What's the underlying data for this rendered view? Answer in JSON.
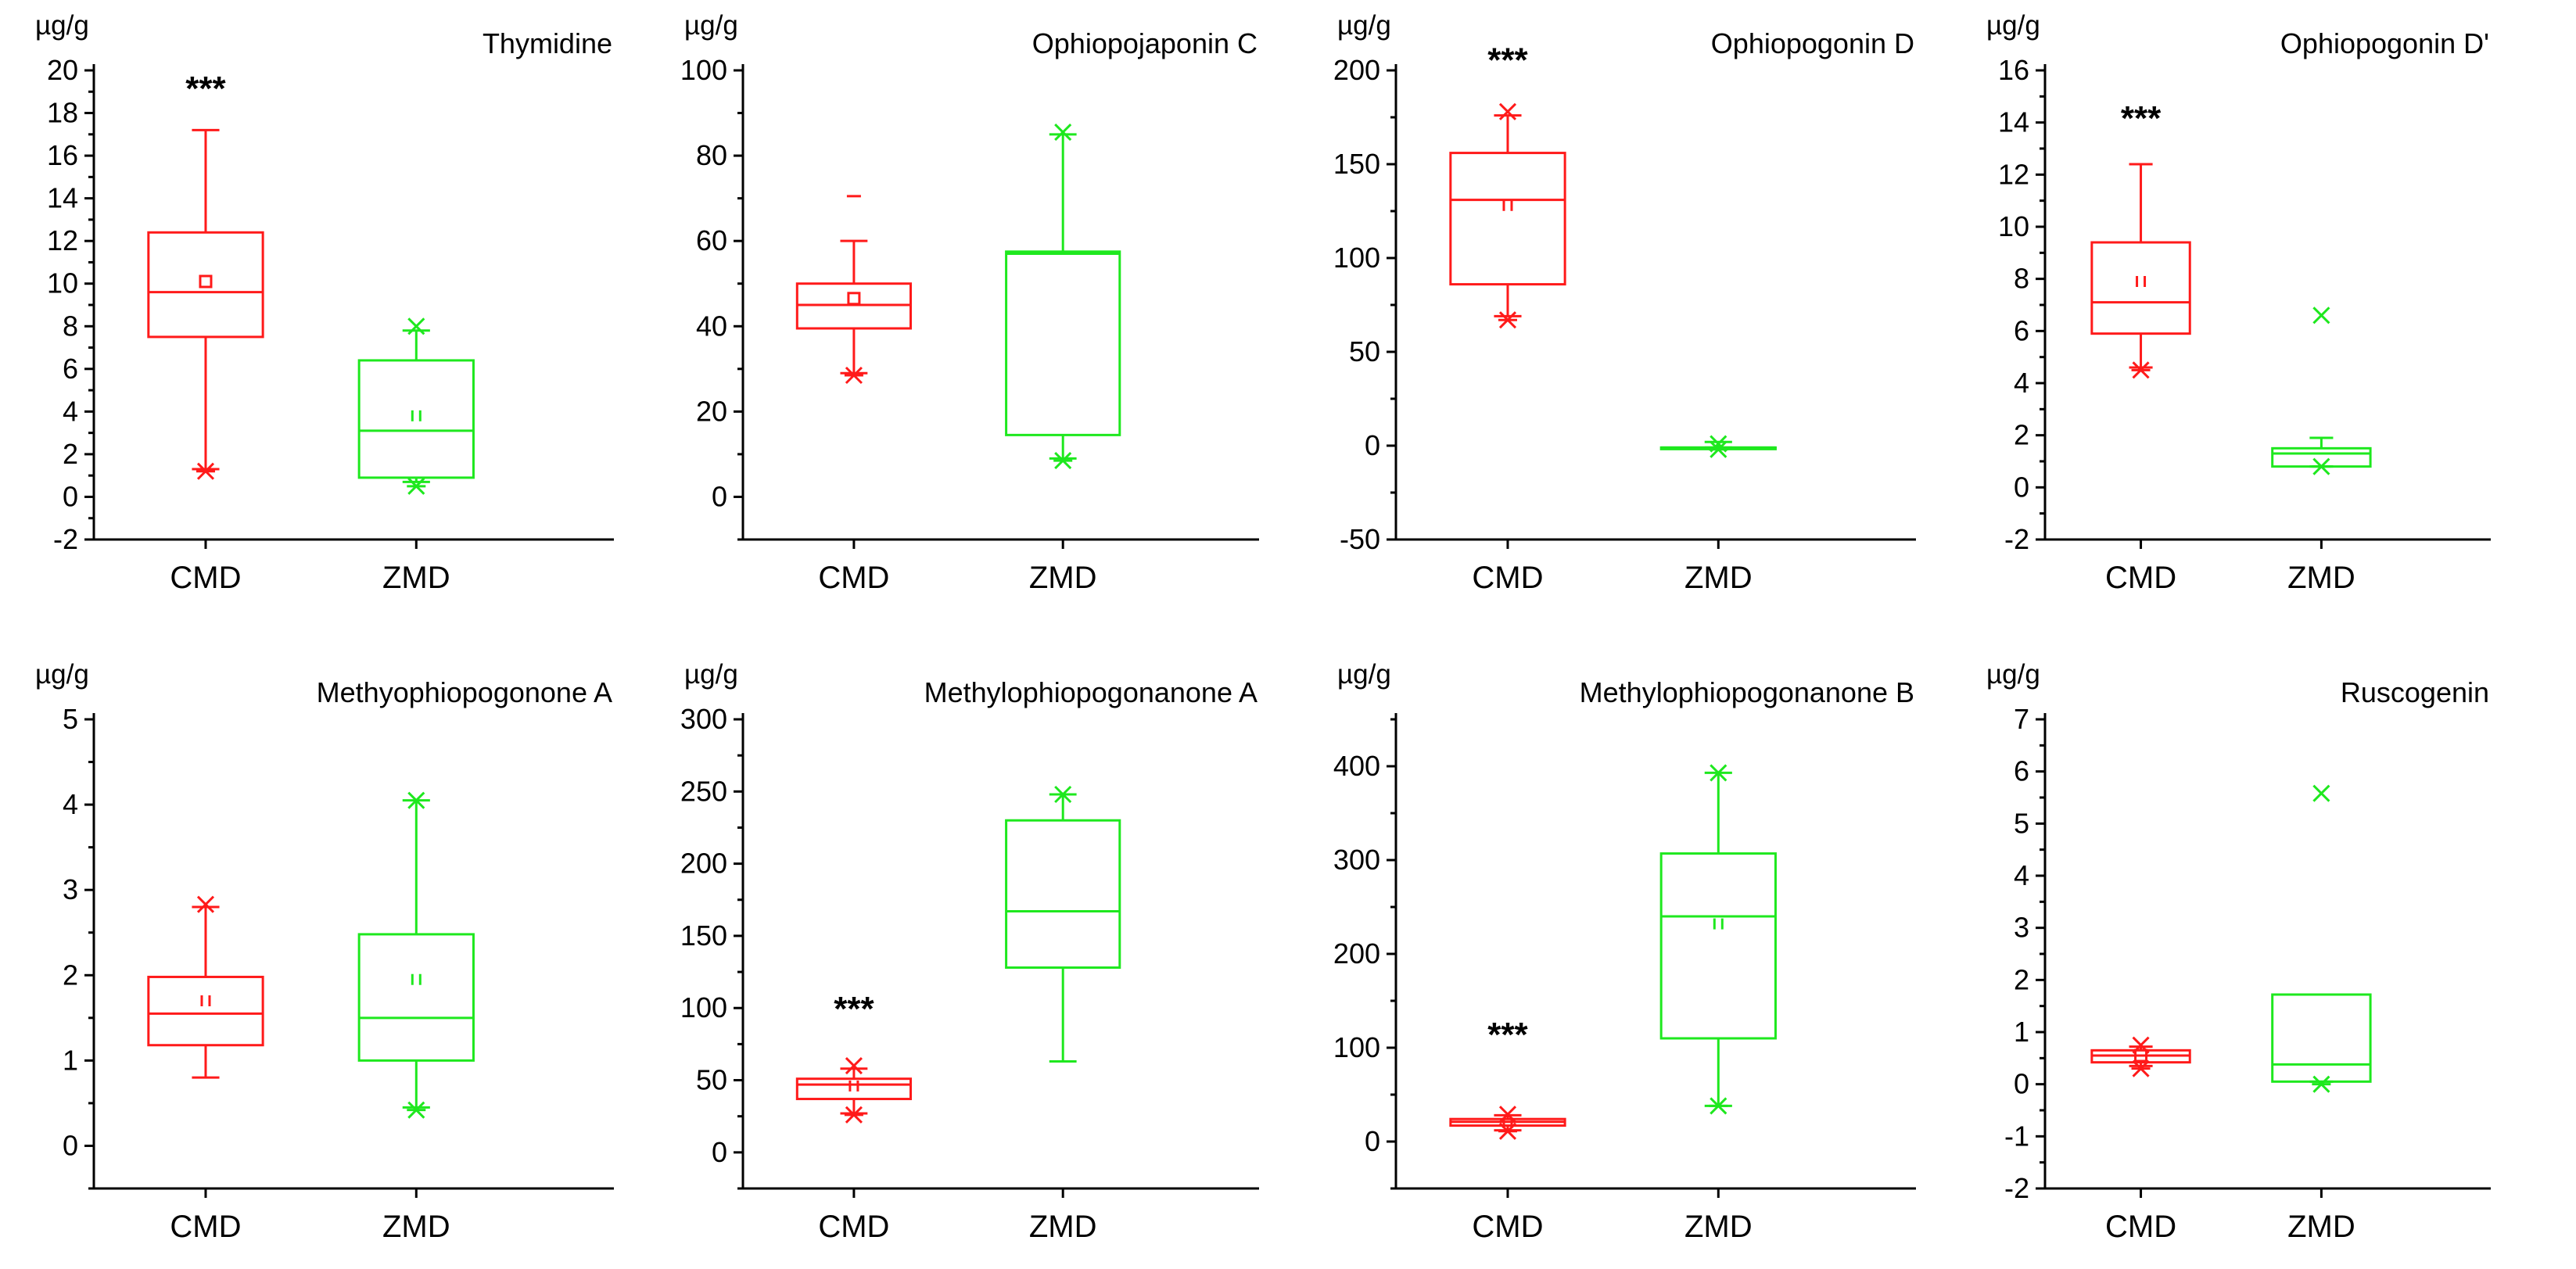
{
  "series_colors": {
    "CMD": "#ff1a1a",
    "ZMD": "#1ee81e"
  },
  "chart_data": [
    {
      "type": "box",
      "title": "Thymidine",
      "ylabel": "µg/g",
      "ylim": [
        -2,
        20
      ],
      "yticks": [
        "-2",
        "0",
        "2",
        "4",
        "6",
        "8",
        "10",
        "12",
        "14",
        "16",
        "18",
        "20"
      ],
      "categories": [
        "CMD",
        "ZMD"
      ],
      "boxes": [
        {
          "name": "CMD",
          "color": "#ff1a1a",
          "whisker_low": 1.3,
          "q1": 7.5,
          "median": 9.6,
          "q3": 12.4,
          "whisker_high": 17.2,
          "mean": 10.1,
          "mean_marker": "square",
          "outliers_low": [
            1.2
          ],
          "outliers_high": []
        },
        {
          "name": "ZMD",
          "color": "#1ee81e",
          "whisker_low": 0.7,
          "q1": 0.9,
          "median": 3.1,
          "q3": 6.4,
          "whisker_high": 7.8,
          "mean": 3.8,
          "mean_marker": "pair",
          "outliers_low": [
            0.5
          ],
          "outliers_high": [
            8.0
          ]
        }
      ],
      "annotations": [
        {
          "text": "***",
          "category": "CMD",
          "value": 19.2
        }
      ]
    },
    {
      "type": "box",
      "title": "Ophiopojaponin C",
      "ylabel": "µg/g",
      "ylim": [
        -10,
        100
      ],
      "yticks": [
        "0",
        "20",
        "40",
        "60",
        "80",
        "100"
      ],
      "categories": [
        "CMD",
        "ZMD"
      ],
      "boxes": [
        {
          "name": "CMD",
          "color": "#ff1a1a",
          "whisker_low": 29,
          "q1": 39.5,
          "median": 45,
          "q3": 50,
          "whisker_high": 60,
          "mean": 46.5,
          "mean_marker": "square",
          "outliers_low": [
            28.5
          ],
          "outliers_high": [
            70.5
          ]
        },
        {
          "name": "ZMD",
          "color": "#1ee81e",
          "whisker_low": 9,
          "q1": 14.5,
          "median": 57,
          "q3": 57.5,
          "whisker_high": 85,
          "mean": 57,
          "mean_marker": "none",
          "outliers_low": [
            8.5
          ],
          "outliers_high": [
            85.5
          ]
        }
      ],
      "annotations": []
    },
    {
      "type": "box",
      "title": "Ophiopogonin D",
      "ylabel": "µg/g",
      "ylim": [
        -50,
        200
      ],
      "yticks": [
        "-50",
        "0",
        "50",
        "100",
        "150",
        "200"
      ],
      "categories": [
        "CMD",
        "ZMD"
      ],
      "boxes": [
        {
          "name": "CMD",
          "color": "#ff1a1a",
          "whisker_low": 69,
          "q1": 86,
          "median": 131,
          "q3": 156,
          "whisker_high": 176,
          "mean": 128,
          "mean_marker": "pair",
          "outliers_low": [
            67
          ],
          "outliers_high": [
            178
          ]
        },
        {
          "name": "ZMD",
          "color": "#1ee81e",
          "whisker_low": -1,
          "q1": -1,
          "median": -1,
          "q3": -1,
          "whisker_high": 2,
          "mean": 0,
          "mean_marker": "none",
          "outliers_low": [
            -2
          ],
          "outliers_high": [
            1
          ]
        }
      ],
      "annotations": [
        {
          "text": "***",
          "category": "CMD",
          "value": 206
        }
      ]
    },
    {
      "type": "box",
      "title": "Ophiopogonin D'",
      "ylabel": "µg/g",
      "ylim": [
        -2,
        16
      ],
      "yticks": [
        "-2",
        "0",
        "2",
        "4",
        "6",
        "8",
        "10",
        "12",
        "14",
        "16"
      ],
      "categories": [
        "CMD",
        "ZMD"
      ],
      "boxes": [
        {
          "name": "CMD",
          "color": "#ff1a1a",
          "whisker_low": 4.6,
          "q1": 5.9,
          "median": 7.1,
          "q3": 9.4,
          "whisker_high": 12.4,
          "mean": 7.9,
          "mean_marker": "pair",
          "outliers_low": [
            4.5
          ],
          "outliers_high": []
        },
        {
          "name": "ZMD",
          "color": "#1ee81e",
          "whisker_low": 0.8,
          "q1": 0.8,
          "median": 1.3,
          "q3": 1.5,
          "whisker_high": 1.9,
          "mean": 1.3,
          "mean_marker": "none",
          "outliers_low": [
            0.8
          ],
          "outliers_high": [
            6.6
          ]
        }
      ],
      "annotations": [
        {
          "text": "***",
          "category": "CMD",
          "value": 14.2
        }
      ]
    },
    {
      "type": "box",
      "title": "Methyophiopogonone A",
      "ylabel": "µg/g",
      "ylim": [
        -0.5,
        5
      ],
      "yticks": [
        "0",
        "1",
        "2",
        "3",
        "4",
        "5"
      ],
      "categories": [
        "CMD",
        "ZMD"
      ],
      "boxes": [
        {
          "name": "CMD",
          "color": "#ff1a1a",
          "whisker_low": 0.8,
          "q1": 1.18,
          "median": 1.55,
          "q3": 1.98,
          "whisker_high": 2.8,
          "mean": 1.7,
          "mean_marker": "pair",
          "outliers_low": [],
          "outliers_high": [
            2.83
          ]
        },
        {
          "name": "ZMD",
          "color": "#1ee81e",
          "whisker_low": 0.45,
          "q1": 1.0,
          "median": 1.5,
          "q3": 2.48,
          "whisker_high": 4.05,
          "mean": 1.95,
          "mean_marker": "pair",
          "outliers_low": [
            0.42
          ],
          "outliers_high": [
            4.05
          ]
        }
      ],
      "annotations": []
    },
    {
      "type": "box",
      "title": "Methylophiopogonanone A",
      "ylabel": "µg/g",
      "ylim": [
        -25,
        300
      ],
      "yticks": [
        "0",
        "50",
        "100",
        "150",
        "200",
        "250",
        "300"
      ],
      "categories": [
        "CMD",
        "ZMD"
      ],
      "boxes": [
        {
          "name": "CMD",
          "color": "#ff1a1a",
          "whisker_low": 27,
          "q1": 37,
          "median": 47,
          "q3": 51,
          "whisker_high": 58,
          "mean": 46,
          "mean_marker": "pair",
          "outliers_low": [
            26
          ],
          "outliers_high": [
            60
          ]
        },
        {
          "name": "ZMD",
          "color": "#1ee81e",
          "whisker_low": 63,
          "q1": 128,
          "median": 167,
          "q3": 230,
          "whisker_high": 248,
          "mean": 167,
          "mean_marker": "none",
          "outliers_low": [],
          "outliers_high": [
            248
          ]
        }
      ],
      "annotations": [
        {
          "text": "***",
          "category": "CMD",
          "value": 100
        }
      ]
    },
    {
      "type": "box",
      "title": "Methylophiopogonanone B",
      "ylabel": "µg/g",
      "ylim": [
        -50,
        450
      ],
      "yticks": [
        "0",
        "100",
        "200",
        "300",
        "400"
      ],
      "categories": [
        "CMD",
        "ZMD"
      ],
      "boxes": [
        {
          "name": "CMD",
          "color": "#ff1a1a",
          "whisker_low": 12,
          "q1": 17,
          "median": 21,
          "q3": 24,
          "whisker_high": 28,
          "mean": 20,
          "mean_marker": "pair",
          "outliers_low": [
            11
          ],
          "outliers_high": [
            29
          ]
        },
        {
          "name": "ZMD",
          "color": "#1ee81e",
          "whisker_low": 38,
          "q1": 110,
          "median": 240,
          "q3": 307,
          "whisker_high": 393,
          "mean": 232,
          "mean_marker": "pair",
          "outliers_low": [
            38
          ],
          "outliers_high": [
            393
          ]
        }
      ],
      "annotations": [
        {
          "text": "***",
          "category": "CMD",
          "value": 115
        }
      ]
    },
    {
      "type": "box",
      "title": "Ruscogenin",
      "ylabel": "µg/g",
      "ylim": [
        -2,
        7
      ],
      "yticks": [
        "-2",
        "-1",
        "0",
        "1",
        "2",
        "3",
        "4",
        "5",
        "6",
        "7"
      ],
      "categories": [
        "CMD",
        "ZMD"
      ],
      "boxes": [
        {
          "name": "CMD",
          "color": "#ff1a1a",
          "whisker_low": 0.35,
          "q1": 0.42,
          "median": 0.55,
          "q3": 0.65,
          "whisker_high": 0.72,
          "mean": 0.55,
          "mean_marker": "square",
          "outliers_low": [
            0.3
          ],
          "outliers_high": [
            0.75
          ]
        },
        {
          "name": "ZMD",
          "color": "#1ee81e",
          "whisker_low": 0.05,
          "q1": 0.05,
          "median": 0.38,
          "q3": 1.72,
          "whisker_high": 1.72,
          "mean": 0.4,
          "mean_marker": "none",
          "outliers_low": [
            0.0
          ],
          "outliers_high": [
            5.58
          ]
        }
      ],
      "annotations": []
    }
  ]
}
